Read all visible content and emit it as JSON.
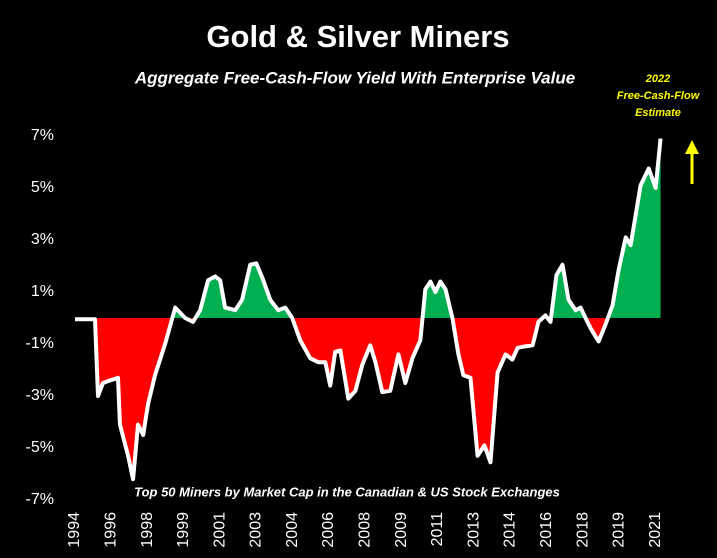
{
  "chart_data": {
    "type": "area",
    "title": "Gold & Silver Miners",
    "subtitle": "Aggregate Free-Cash-Flow Yield With Enterprise Value",
    "annotation": [
      "2022",
      "Free-Cash-Flow",
      "Estimate"
    ],
    "note": "Top 50 Miners by Market Cap in the Canadian & US Stock Exchanges",
    "x": [
      1994.0,
      1994.93,
      1995.07,
      1995.3,
      1995.63,
      1996.0,
      1996.09,
      1996.47,
      1996.7,
      1996.93,
      1997.17,
      1997.4,
      1997.72,
      1998.19,
      1998.66,
      1999.12,
      1999.49,
      1999.82,
      2000.19,
      2000.52,
      2000.75,
      2000.98,
      2001.45,
      2001.77,
      2002.15,
      2002.43,
      2002.71,
      2003.08,
      2003.45,
      2003.78,
      2004.1,
      2004.47,
      2004.94,
      2005.31,
      2005.64,
      2005.87,
      2006.1,
      2006.34,
      2006.71,
      2007.04,
      2007.36,
      2007.73,
      2007.97,
      2008.29,
      2008.66,
      2009.04,
      2009.36,
      2009.69,
      2010.06,
      2010.29,
      2010.53,
      2010.76,
      2010.99,
      2011.23,
      2011.55,
      2011.83,
      2012.06,
      2012.39,
      2012.72,
      2013.04,
      2013.32,
      2013.65,
      2014.02,
      2014.34,
      2014.58,
      2014.86,
      2015.28,
      2015.55,
      2015.88,
      2016.11,
      2016.39,
      2016.67,
      2016.95,
      2017.28,
      2017.51,
      2017.74,
      2017.98,
      2018.35,
      2018.67,
      2019.0,
      2019.28,
      2019.61,
      2019.84,
      2020.3,
      2020.68,
      2021.0,
      2021.23
    ],
    "values": [
      -0.05,
      -0.05,
      -3.0,
      -2.5,
      -2.4,
      -2.3,
      -4.1,
      -5.3,
      -6.2,
      -4.1,
      -4.5,
      -3.3,
      -2.2,
      -1.0,
      0.4,
      0,
      -0.15,
      0.3,
      1.45,
      1.6,
      1.45,
      0.4,
      0.3,
      0.7,
      2.05,
      2.1,
      1.55,
      0.7,
      0.3,
      0.4,
      0,
      -0.85,
      -1.55,
      -1.7,
      -1.7,
      -2.6,
      -1.3,
      -1.25,
      -3.1,
      -2.8,
      -1.8,
      -1.05,
      -1.7,
      -2.85,
      -2.8,
      -1.4,
      -2.5,
      -1.55,
      -0.85,
      1.1,
      1.4,
      1.0,
      1.4,
      1.1,
      0,
      -1.4,
      -2.2,
      -2.3,
      -5.3,
      -4.9,
      -5.55,
      -2.1,
      -1.4,
      -1.6,
      -1.15,
      -1.1,
      -1.05,
      -0.15,
      0.1,
      -0.15,
      1.65,
      2.05,
      0.7,
      0.3,
      0.4,
      0,
      -0.4,
      -0.9,
      -0.25,
      0.5,
      1.85,
      3.1,
      2.8,
      5.1,
      5.75,
      5.0,
      6.9
    ],
    "line_color": "#ffffff",
    "positive_color": "#00b050",
    "negative_color": "#ff0000",
    "xlim": [
      1994,
      2021.25
    ],
    "xticks": [
      {
        "value": 1994,
        "label": "1994"
      },
      {
        "value": 1995.69,
        "label": "1996"
      },
      {
        "value": 1997.38,
        "label": "1998"
      },
      {
        "value": 1999.06,
        "label": "1999"
      },
      {
        "value": 2000.75,
        "label": "2001"
      },
      {
        "value": 2002.44,
        "label": "2003"
      },
      {
        "value": 2004.13,
        "label": "2004"
      },
      {
        "value": 2005.81,
        "label": "2006"
      },
      {
        "value": 2007.5,
        "label": "2008"
      },
      {
        "value": 2009.19,
        "label": "2009"
      },
      {
        "value": 2010.88,
        "label": "2011"
      },
      {
        "value": 2012.56,
        "label": "2013"
      },
      {
        "value": 2014.25,
        "label": "2014"
      },
      {
        "value": 2015.94,
        "label": "2016"
      },
      {
        "value": 2017.63,
        "label": "2018"
      },
      {
        "value": 2019.31,
        "label": "2019"
      },
      {
        "value": 2021,
        "label": "2021"
      }
    ],
    "ylim": [
      -7,
      7
    ],
    "yticks": [
      {
        "value": 7,
        "label": "7%"
      },
      {
        "value": 5,
        "label": "5%"
      },
      {
        "value": 3,
        "label": "3%"
      },
      {
        "value": 1,
        "label": "1%"
      },
      {
        "value": -1,
        "label": "-1%"
      },
      {
        "value": -3,
        "label": "-3%"
      },
      {
        "value": -5,
        "label": "-5%"
      },
      {
        "value": -7,
        "label": "-7%"
      }
    ]
  }
}
